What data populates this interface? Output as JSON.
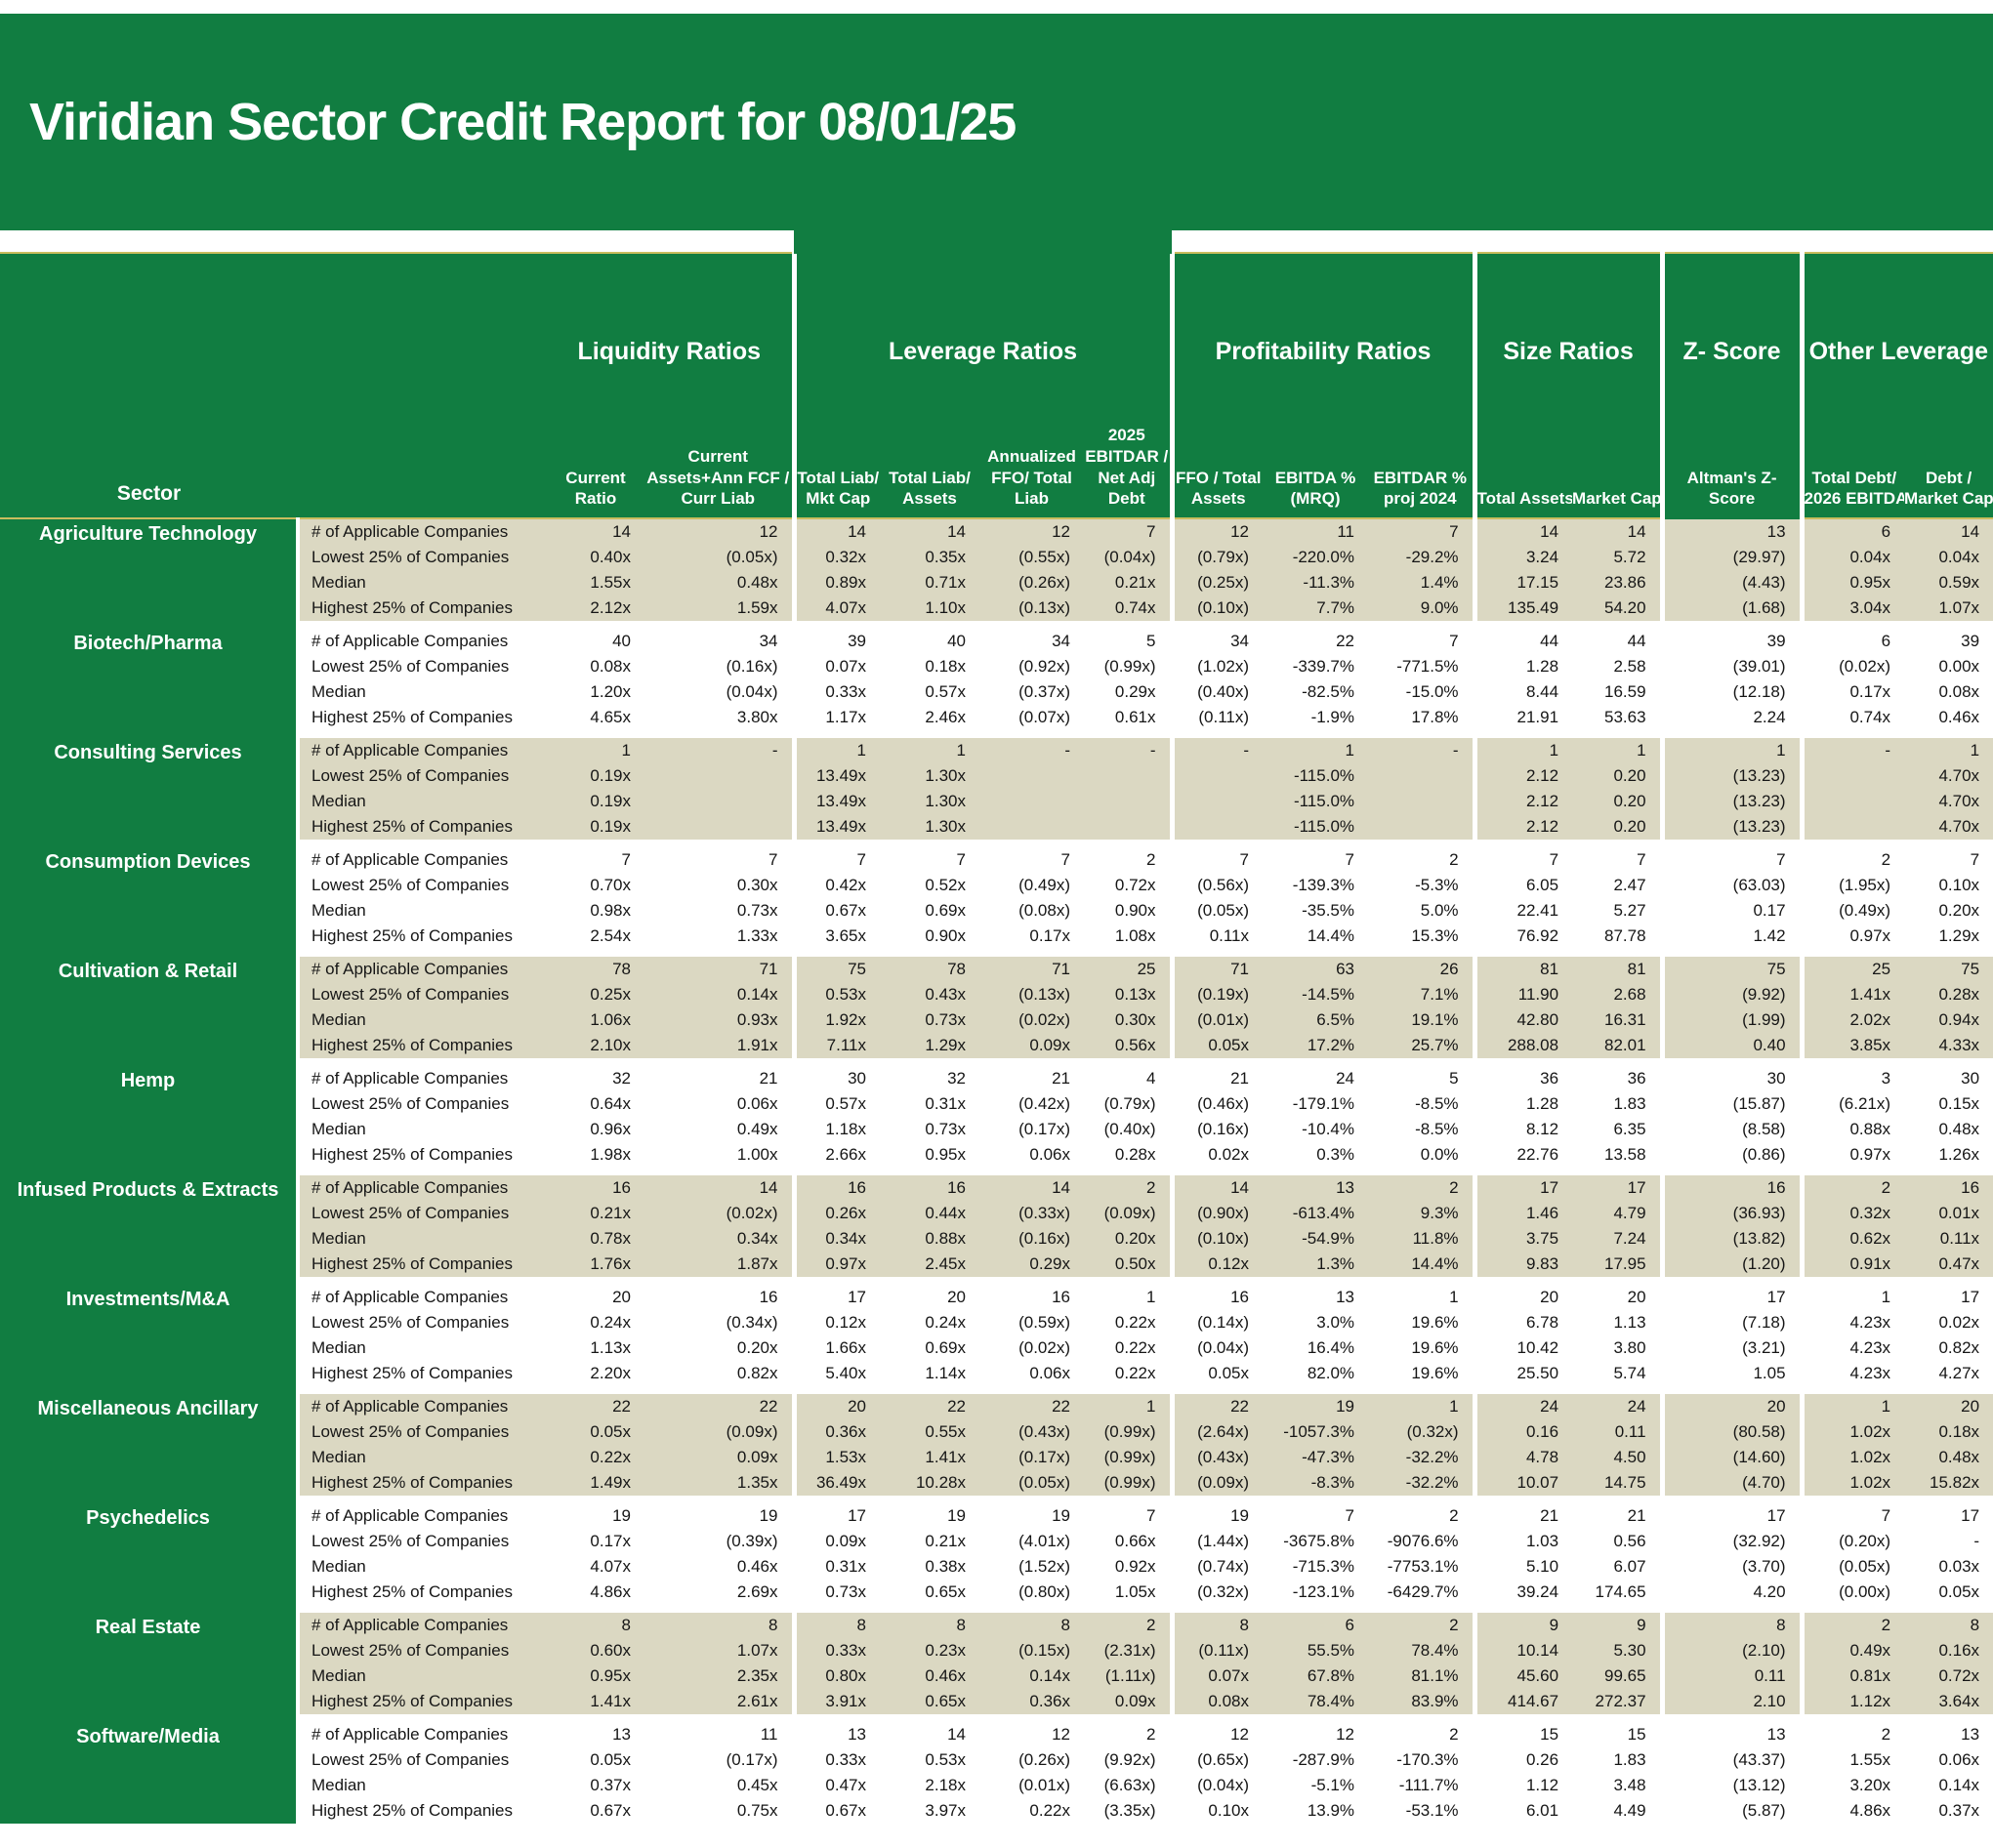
{
  "title": "Viridian Sector Credit Report for 08/01/25",
  "table": {
    "sector_header": "Sector",
    "row_labels": [
      "# of Applicable Companies",
      "Lowest 25% of Companies",
      "Median",
      "Highest 25% of Companies"
    ],
    "groups": [
      {
        "label": "Liquidity Ratios",
        "span": 2
      },
      {
        "label": "Leverage Ratios",
        "span": 4
      },
      {
        "label": "Profitability Ratios",
        "span": 3
      },
      {
        "label": "Size Ratios",
        "span": 2
      },
      {
        "label": "Z- Score",
        "span": 1
      },
      {
        "label": "Other Leverage",
        "span": 2
      }
    ],
    "columns": [
      {
        "lines": [
          "Current",
          "Ratio"
        ]
      },
      {
        "lines": [
          "Current",
          "Assets+Ann FCF /",
          "Curr Liab"
        ],
        "gutter": true
      },
      {
        "lines": [
          "Total Liab/",
          "Mkt Cap"
        ]
      },
      {
        "lines": [
          "Total Liab/",
          "Assets"
        ]
      },
      {
        "lines": [
          "Annualized",
          "FFO/ Total",
          "Liab"
        ]
      },
      {
        "lines": [
          "2025",
          "EBITDAR /",
          "Net Adj",
          "Debt"
        ],
        "gutter": true
      },
      {
        "lines": [
          "FFO / Total",
          "Assets"
        ]
      },
      {
        "lines": [
          "EBITDA %",
          "(MRQ)"
        ]
      },
      {
        "lines": [
          "EBITDAR %",
          "proj 2024"
        ],
        "gutter": true
      },
      {
        "lines": [
          "Total Assets"
        ]
      },
      {
        "lines": [
          "Market Cap"
        ],
        "gutter": true
      },
      {
        "lines": [
          "Altman's Z-",
          "Score"
        ],
        "gutter": true,
        "no_underline": true
      },
      {
        "lines": [
          "Total Debt/",
          "2026 EBITDA"
        ]
      },
      {
        "lines": [
          "Debt /",
          "Market Cap"
        ]
      }
    ],
    "sectors": [
      {
        "name": "Agriculture Technology",
        "shade": "tan",
        "rows": [
          [
            "14",
            "12",
            "14",
            "14",
            "12",
            "7",
            "12",
            "11",
            "7",
            "14",
            "14",
            "13",
            "6",
            "14"
          ],
          [
            "0.40x",
            "(0.05x)",
            "0.32x",
            "0.35x",
            "(0.55x)",
            "(0.04x)",
            "(0.79x)",
            "-220.0%",
            "-29.2%",
            "3.24",
            "5.72",
            "(29.97)",
            "0.04x",
            "0.04x"
          ],
          [
            "1.55x",
            "0.48x",
            "0.89x",
            "0.71x",
            "(0.26x)",
            "0.21x",
            "(0.25x)",
            "-11.3%",
            "1.4%",
            "17.15",
            "23.86",
            "(4.43)",
            "0.95x",
            "0.59x"
          ],
          [
            "2.12x",
            "1.59x",
            "4.07x",
            "1.10x",
            "(0.13x)",
            "0.74x",
            "(0.10x)",
            "7.7%",
            "9.0%",
            "135.49",
            "54.20",
            "(1.68)",
            "3.04x",
            "1.07x"
          ]
        ]
      },
      {
        "name": "Biotech/Pharma",
        "shade": "white",
        "rows": [
          [
            "40",
            "34",
            "39",
            "40",
            "34",
            "5",
            "34",
            "22",
            "7",
            "44",
            "44",
            "39",
            "6",
            "39"
          ],
          [
            "0.08x",
            "(0.16x)",
            "0.07x",
            "0.18x",
            "(0.92x)",
            "(0.99x)",
            "(1.02x)",
            "-339.7%",
            "-771.5%",
            "1.28",
            "2.58",
            "(39.01)",
            "(0.02x)",
            "0.00x"
          ],
          [
            "1.20x",
            "(0.04x)",
            "0.33x",
            "0.57x",
            "(0.37x)",
            "0.29x",
            "(0.40x)",
            "-82.5%",
            "-15.0%",
            "8.44",
            "16.59",
            "(12.18)",
            "0.17x",
            "0.08x"
          ],
          [
            "4.65x",
            "3.80x",
            "1.17x",
            "2.46x",
            "(0.07x)",
            "0.61x",
            "(0.11x)",
            "-1.9%",
            "17.8%",
            "21.91",
            "53.63",
            "2.24",
            "0.74x",
            "0.46x"
          ]
        ]
      },
      {
        "name": "Consulting Services",
        "shade": "tan",
        "rows": [
          [
            "1",
            "-",
            "1",
            "1",
            "-",
            "-",
            "-",
            "1",
            "-",
            "1",
            "1",
            "1",
            "-",
            "1"
          ],
          [
            "0.19x",
            "",
            "13.49x",
            "1.30x",
            "",
            "",
            "",
            "-115.0%",
            "",
            "2.12",
            "0.20",
            "(13.23)",
            "",
            "4.70x"
          ],
          [
            "0.19x",
            "",
            "13.49x",
            "1.30x",
            "",
            "",
            "",
            "-115.0%",
            "",
            "2.12",
            "0.20",
            "(13.23)",
            "",
            "4.70x"
          ],
          [
            "0.19x",
            "",
            "13.49x",
            "1.30x",
            "",
            "",
            "",
            "-115.0%",
            "",
            "2.12",
            "0.20",
            "(13.23)",
            "",
            "4.70x"
          ]
        ]
      },
      {
        "name": "Consumption Devices",
        "shade": "white",
        "rows": [
          [
            "7",
            "7",
            "7",
            "7",
            "7",
            "2",
            "7",
            "7",
            "2",
            "7",
            "7",
            "7",
            "2",
            "7"
          ],
          [
            "0.70x",
            "0.30x",
            "0.42x",
            "0.52x",
            "(0.49x)",
            "0.72x",
            "(0.56x)",
            "-139.3%",
            "-5.3%",
            "6.05",
            "2.47",
            "(63.03)",
            "(1.95x)",
            "0.10x"
          ],
          [
            "0.98x",
            "0.73x",
            "0.67x",
            "0.69x",
            "(0.08x)",
            "0.90x",
            "(0.05x)",
            "-35.5%",
            "5.0%",
            "22.41",
            "5.27",
            "0.17",
            "(0.49x)",
            "0.20x"
          ],
          [
            "2.54x",
            "1.33x",
            "3.65x",
            "0.90x",
            "0.17x",
            "1.08x",
            "0.11x",
            "14.4%",
            "15.3%",
            "76.92",
            "87.78",
            "1.42",
            "0.97x",
            "1.29x"
          ]
        ]
      },
      {
        "name": "Cultivation & Retail",
        "shade": "tan",
        "rows": [
          [
            "78",
            "71",
            "75",
            "78",
            "71",
            "25",
            "71",
            "63",
            "26",
            "81",
            "81",
            "75",
            "25",
            "75"
          ],
          [
            "0.25x",
            "0.14x",
            "0.53x",
            "0.43x",
            "(0.13x)",
            "0.13x",
            "(0.19x)",
            "-14.5%",
            "7.1%",
            "11.90",
            "2.68",
            "(9.92)",
            "1.41x",
            "0.28x"
          ],
          [
            "1.06x",
            "0.93x",
            "1.92x",
            "0.73x",
            "(0.02x)",
            "0.30x",
            "(0.01x)",
            "6.5%",
            "19.1%",
            "42.80",
            "16.31",
            "(1.99)",
            "2.02x",
            "0.94x"
          ],
          [
            "2.10x",
            "1.91x",
            "7.11x",
            "1.29x",
            "0.09x",
            "0.56x",
            "0.05x",
            "17.2%",
            "25.7%",
            "288.08",
            "82.01",
            "0.40",
            "3.85x",
            "4.33x"
          ]
        ]
      },
      {
        "name": "Hemp",
        "shade": "white",
        "rows": [
          [
            "32",
            "21",
            "30",
            "32",
            "21",
            "4",
            "21",
            "24",
            "5",
            "36",
            "36",
            "30",
            "3",
            "30"
          ],
          [
            "0.64x",
            "0.06x",
            "0.57x",
            "0.31x",
            "(0.42x)",
            "(0.79x)",
            "(0.46x)",
            "-179.1%",
            "-8.5%",
            "1.28",
            "1.83",
            "(15.87)",
            "(6.21x)",
            "0.15x"
          ],
          [
            "0.96x",
            "0.49x",
            "1.18x",
            "0.73x",
            "(0.17x)",
            "(0.40x)",
            "(0.16x)",
            "-10.4%",
            "-8.5%",
            "8.12",
            "6.35",
            "(8.58)",
            "0.88x",
            "0.48x"
          ],
          [
            "1.98x",
            "1.00x",
            "2.66x",
            "0.95x",
            "0.06x",
            "0.28x",
            "0.02x",
            "0.3%",
            "0.0%",
            "22.76",
            "13.58",
            "(0.86)",
            "0.97x",
            "1.26x"
          ]
        ]
      },
      {
        "name": "Infused Products & Extracts",
        "shade": "tan",
        "rows": [
          [
            "16",
            "14",
            "16",
            "16",
            "14",
            "2",
            "14",
            "13",
            "2",
            "17",
            "17",
            "16",
            "2",
            "16"
          ],
          [
            "0.21x",
            "(0.02x)",
            "0.26x",
            "0.44x",
            "(0.33x)",
            "(0.09x)",
            "(0.90x)",
            "-613.4%",
            "9.3%",
            "1.46",
            "4.79",
            "(36.93)",
            "0.32x",
            "0.01x"
          ],
          [
            "0.78x",
            "0.34x",
            "0.34x",
            "0.88x",
            "(0.16x)",
            "0.20x",
            "(0.10x)",
            "-54.9%",
            "11.8%",
            "3.75",
            "7.24",
            "(13.82)",
            "0.62x",
            "0.11x"
          ],
          [
            "1.76x",
            "1.87x",
            "0.97x",
            "2.45x",
            "0.29x",
            "0.50x",
            "0.12x",
            "1.3%",
            "14.4%",
            "9.83",
            "17.95",
            "(1.20)",
            "0.91x",
            "0.47x"
          ]
        ]
      },
      {
        "name": "Investments/M&A",
        "shade": "white",
        "rows": [
          [
            "20",
            "16",
            "17",
            "20",
            "16",
            "1",
            "16",
            "13",
            "1",
            "20",
            "20",
            "17",
            "1",
            "17"
          ],
          [
            "0.24x",
            "(0.34x)",
            "0.12x",
            "0.24x",
            "(0.59x)",
            "0.22x",
            "(0.14x)",
            "3.0%",
            "19.6%",
            "6.78",
            "1.13",
            "(7.18)",
            "4.23x",
            "0.02x"
          ],
          [
            "1.13x",
            "0.20x",
            "1.66x",
            "0.69x",
            "(0.02x)",
            "0.22x",
            "(0.04x)",
            "16.4%",
            "19.6%",
            "10.42",
            "3.80",
            "(3.21)",
            "4.23x",
            "0.82x"
          ],
          [
            "2.20x",
            "0.82x",
            "5.40x",
            "1.14x",
            "0.06x",
            "0.22x",
            "0.05x",
            "82.0%",
            "19.6%",
            "25.50",
            "5.74",
            "1.05",
            "4.23x",
            "4.27x"
          ]
        ]
      },
      {
        "name": "Miscellaneous Ancillary",
        "shade": "tan",
        "rows": [
          [
            "22",
            "22",
            "20",
            "22",
            "22",
            "1",
            "22",
            "19",
            "1",
            "24",
            "24",
            "20",
            "1",
            "20"
          ],
          [
            "0.05x",
            "(0.09x)",
            "0.36x",
            "0.55x",
            "(0.43x)",
            "(0.99x)",
            "(2.64x)",
            "-1057.3%",
            "(0.32x)",
            "0.16",
            "0.11",
            "(80.58)",
            "1.02x",
            "0.18x"
          ],
          [
            "0.22x",
            "0.09x",
            "1.53x",
            "1.41x",
            "(0.17x)",
            "(0.99x)",
            "(0.43x)",
            "-47.3%",
            "-32.2%",
            "4.78",
            "4.50",
            "(14.60)",
            "1.02x",
            "0.48x"
          ],
          [
            "1.49x",
            "1.35x",
            "36.49x",
            "10.28x",
            "(0.05x)",
            "(0.99x)",
            "(0.09x)",
            "-8.3%",
            "-32.2%",
            "10.07",
            "14.75",
            "(4.70)",
            "1.02x",
            "15.82x"
          ]
        ]
      },
      {
        "name": "Psychedelics",
        "shade": "white",
        "rows": [
          [
            "19",
            "19",
            "17",
            "19",
            "19",
            "7",
            "19",
            "7",
            "2",
            "21",
            "21",
            "17",
            "7",
            "17"
          ],
          [
            "0.17x",
            "(0.39x)",
            "0.09x",
            "0.21x",
            "(4.01x)",
            "0.66x",
            "(1.44x)",
            "-3675.8%",
            "-9076.6%",
            "1.03",
            "0.56",
            "(32.92)",
            "(0.20x)",
            "-"
          ],
          [
            "4.07x",
            "0.46x",
            "0.31x",
            "0.38x",
            "(1.52x)",
            "0.92x",
            "(0.74x)",
            "-715.3%",
            "-7753.1%",
            "5.10",
            "6.07",
            "(3.70)",
            "(0.05x)",
            "0.03x"
          ],
          [
            "4.86x",
            "2.69x",
            "0.73x",
            "0.65x",
            "(0.80x)",
            "1.05x",
            "(0.32x)",
            "-123.1%",
            "-6429.7%",
            "39.24",
            "174.65",
            "4.20",
            "(0.00x)",
            "0.05x"
          ]
        ]
      },
      {
        "name": "Real Estate",
        "shade": "tan",
        "rows": [
          [
            "8",
            "8",
            "8",
            "8",
            "8",
            "2",
            "8",
            "6",
            "2",
            "9",
            "9",
            "8",
            "2",
            "8"
          ],
          [
            "0.60x",
            "1.07x",
            "0.33x",
            "0.23x",
            "(0.15x)",
            "(2.31x)",
            "(0.11x)",
            "55.5%",
            "78.4%",
            "10.14",
            "5.30",
            "(2.10)",
            "0.49x",
            "0.16x"
          ],
          [
            "0.95x",
            "2.35x",
            "0.80x",
            "0.46x",
            "0.14x",
            "(1.11x)",
            "0.07x",
            "67.8%",
            "81.1%",
            "45.60",
            "99.65",
            "0.11",
            "0.81x",
            "0.72x"
          ],
          [
            "1.41x",
            "2.61x",
            "3.91x",
            "0.65x",
            "0.36x",
            "0.09x",
            "0.08x",
            "78.4%",
            "83.9%",
            "414.67",
            "272.37",
            "2.10",
            "1.12x",
            "3.64x"
          ]
        ]
      },
      {
        "name": "Software/Media",
        "shade": "white",
        "rows": [
          [
            "13",
            "11",
            "13",
            "14",
            "12",
            "2",
            "12",
            "12",
            "2",
            "15",
            "15",
            "13",
            "2",
            "13"
          ],
          [
            "0.05x",
            "(0.17x)",
            "0.33x",
            "0.53x",
            "(0.26x)",
            "(9.92x)",
            "(0.65x)",
            "-287.9%",
            "-170.3%",
            "0.26",
            "1.83",
            "(43.37)",
            "1.55x",
            "0.06x"
          ],
          [
            "0.37x",
            "0.45x",
            "0.47x",
            "2.18x",
            "(0.01x)",
            "(6.63x)",
            "(0.04x)",
            "-5.1%",
            "-111.7%",
            "1.12",
            "3.48",
            "(13.12)",
            "3.20x",
            "0.14x"
          ],
          [
            "0.67x",
            "0.75x",
            "0.67x",
            "3.97x",
            "0.22x",
            "(3.35x)",
            "0.10x",
            "13.9%",
            "-53.1%",
            "6.01",
            "4.49",
            "(5.87)",
            "4.86x",
            "0.37x"
          ]
        ]
      }
    ]
  },
  "colors": {
    "green": "#117d41",
    "tan": "#dbd8c2",
    "yellow_line": "#c9bd5e"
  }
}
